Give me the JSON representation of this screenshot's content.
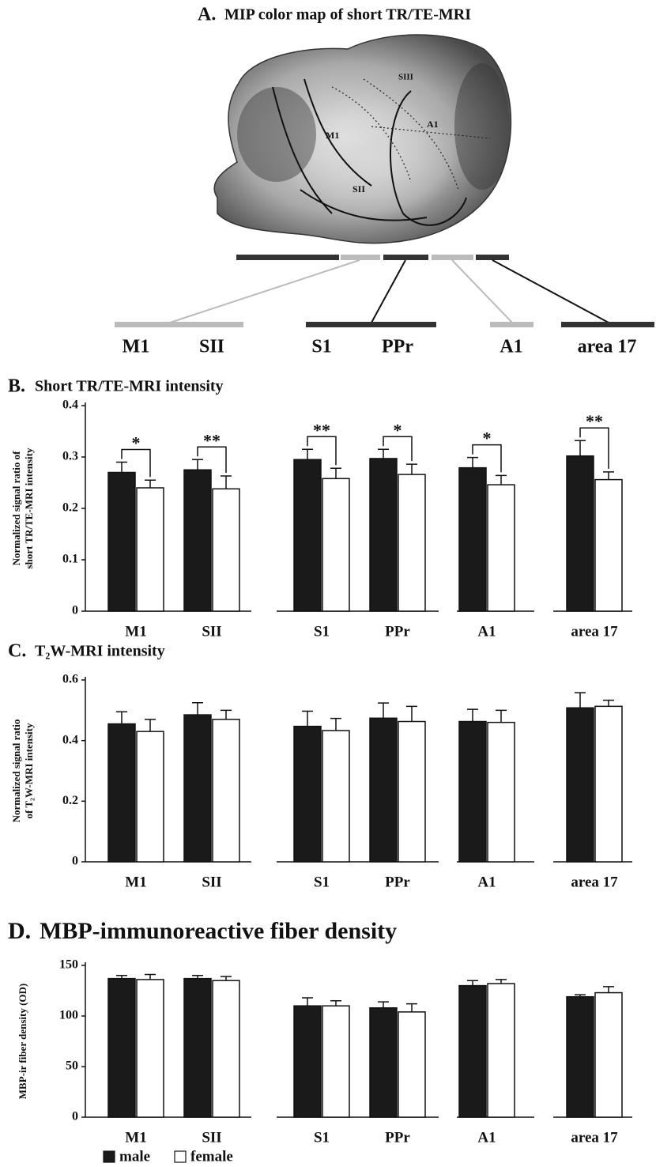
{
  "panel_a": {
    "label": "A.",
    "title": "MIP color map of short TR/TE-MRI",
    "brain_labels": [
      "SIII",
      "M1",
      "A1",
      "SII"
    ],
    "regions": [
      "M1",
      "SII",
      "S1",
      "PPr",
      "A1",
      "area 17"
    ]
  },
  "chart_data": [
    {
      "type": "bar",
      "label": "B.",
      "title": "Short TR/TE-MRI intensity",
      "ylabel": [
        "Normalized signal ratio of",
        "short TR/TE-MRI intensity"
      ],
      "categories": [
        "M1",
        "SII",
        "S1",
        "PPr",
        "A1",
        "area 17"
      ],
      "series": [
        {
          "color": "#1a1a1a",
          "values": [
            0.27,
            0.275,
            0.295,
            0.297,
            0.279,
            0.302
          ],
          "errors": [
            0.02,
            0.02,
            0.02,
            0.018,
            0.02,
            0.03
          ]
        },
        {
          "color": "#ffffff",
          "values": [
            0.24,
            0.238,
            0.258,
            0.266,
            0.246,
            0.256
          ],
          "errors": [
            0.015,
            0.025,
            0.02,
            0.02,
            0.018,
            0.015
          ]
        }
      ],
      "significance": [
        "*",
        "**",
        "**",
        "*",
        "*",
        "**"
      ],
      "ylim": [
        0,
        0.4
      ],
      "yticks": [
        0,
        0.1,
        0.2,
        0.3,
        0.4
      ]
    },
    {
      "type": "bar",
      "label": "C.",
      "title": "T₂W-MRI intensity",
      "ylabel": [
        "Normalized signal ratio",
        "of T₂W-MRI intensity"
      ],
      "categories": [
        "M1",
        "SII",
        "S1",
        "PPr",
        "A1",
        "area 17"
      ],
      "series": [
        {
          "color": "#1a1a1a",
          "values": [
            0.455,
            0.485,
            0.447,
            0.474,
            0.463,
            0.508
          ],
          "errors": [
            0.04,
            0.04,
            0.05,
            0.05,
            0.04,
            0.05
          ]
        },
        {
          "color": "#ffffff",
          "values": [
            0.43,
            0.47,
            0.433,
            0.463,
            0.46,
            0.513
          ],
          "errors": [
            0.04,
            0.03,
            0.04,
            0.05,
            0.04,
            0.02
          ]
        }
      ],
      "ylim": [
        0,
        0.6
      ],
      "yticks": [
        0,
        0.2,
        0.4,
        0.6
      ]
    },
    {
      "type": "bar",
      "label": "D.",
      "title": "MBP-immunoreactive fiber density",
      "ylabel": [
        "MBP-ir fiber density (OD)"
      ],
      "categories": [
        "M1",
        "SII",
        "S1",
        "PPr",
        "A1",
        "area 17"
      ],
      "series": [
        {
          "name": "male",
          "color": "#1a1a1a",
          "values": [
            137,
            137,
            110,
            108,
            130,
            119
          ],
          "errors": [
            3,
            3,
            8,
            6,
            5,
            2
          ]
        },
        {
          "name": "female",
          "color": "#ffffff",
          "values": [
            136,
            135,
            110,
            104,
            132,
            123
          ],
          "errors": [
            5,
            4,
            5,
            8,
            4,
            6
          ]
        }
      ],
      "ylim": [
        0,
        150
      ],
      "yticks": [
        0,
        50,
        100,
        150
      ]
    }
  ]
}
